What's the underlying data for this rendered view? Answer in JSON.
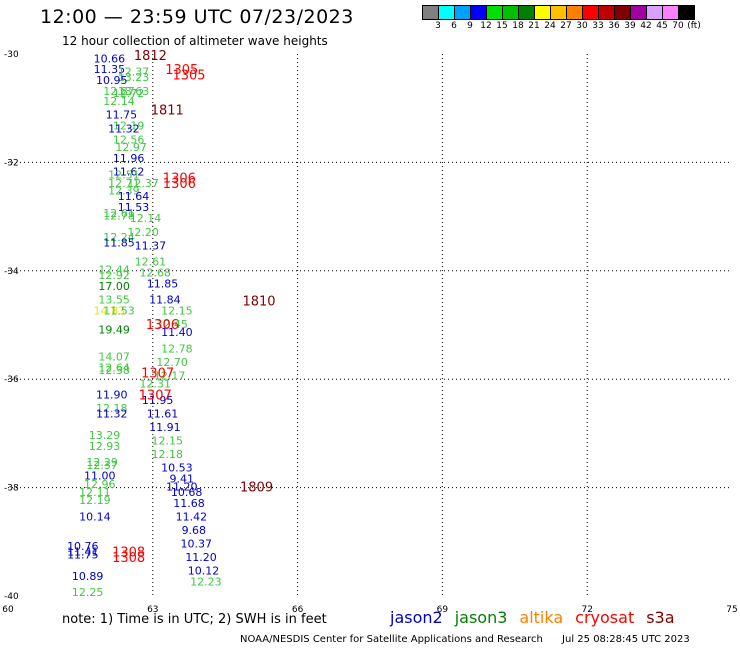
{
  "title": "12:00 — 23:59 UTC 07/23/2023",
  "subtitle": "12 hour collection of altimeter wave heights",
  "legend": {
    "colors": [
      "#808080",
      "#00ffff",
      "#00a0ff",
      "#0000ff",
      "#00e000",
      "#00c000",
      "#008000",
      "#ffff00",
      "#ffc000",
      "#ff8000",
      "#ff0000",
      "#c00000",
      "#800000",
      "#a000a0",
      "#d8a0ff",
      "#ff80ff",
      "#000000"
    ],
    "labels": [
      "3",
      "6",
      "9",
      "12",
      "15",
      "18",
      "21",
      "24",
      "27",
      "30",
      "33",
      "36",
      "39",
      "42",
      "45",
      "70",
      "(ft)"
    ]
  },
  "axes": {
    "lon_ticks": [
      "60",
      "63",
      "66",
      "69",
      "72",
      "75"
    ],
    "lat_ticks": [
      "-30",
      "-32",
      "-34",
      "-36",
      "-38",
      "-40"
    ]
  },
  "chart_data": {
    "type": "scatter",
    "xlabel": "",
    "ylabel": "",
    "xlim": [
      60,
      75
    ],
    "ylim": [
      -40,
      -30
    ],
    "grid": true,
    "colors": {
      "jason2": "#0000c8",
      "jason3": "#40c840",
      "jason3_dark": "#008000",
      "yellow": "#e8e800",
      "cryosat": "#ff0000",
      "s3a": "#800000"
    },
    "wave_heights": [
      {
        "lon": 62.1,
        "lat": -30.08,
        "value": "10.66",
        "color": "jason2"
      },
      {
        "lon": 62.1,
        "lat": -30.28,
        "value": "11.35",
        "color": "jason2"
      },
      {
        "lon": 62.6,
        "lat": -30.32,
        "value": "12.37",
        "color": "jason3"
      },
      {
        "lon": 62.6,
        "lat": -30.42,
        "value": "13.23",
        "color": "jason3"
      },
      {
        "lon": 62.15,
        "lat": -30.48,
        "value": "10.95",
        "color": "jason2"
      },
      {
        "lon": 62.3,
        "lat": -30.68,
        "value": "12.87",
        "color": "jason3"
      },
      {
        "lon": 62.6,
        "lat": -30.68,
        "value": "13.63",
        "color": "jason3"
      },
      {
        "lon": 62.5,
        "lat": -30.72,
        "value": "12.72",
        "color": "jason3"
      },
      {
        "lon": 62.3,
        "lat": -30.87,
        "value": "12.14",
        "color": "jason3"
      },
      {
        "lon": 62.35,
        "lat": -31.12,
        "value": "11.75",
        "color": "jason2"
      },
      {
        "lon": 62.5,
        "lat": -31.32,
        "value": "12.19",
        "color": "jason3"
      },
      {
        "lon": 62.4,
        "lat": -31.37,
        "value": "11.32",
        "color": "jason2"
      },
      {
        "lon": 62.5,
        "lat": -31.58,
        "value": "12.56",
        "color": "jason3"
      },
      {
        "lon": 62.55,
        "lat": -31.72,
        "value": "12.97",
        "color": "jason3"
      },
      {
        "lon": 62.5,
        "lat": -31.92,
        "value": "11.96",
        "color": "jason2"
      },
      {
        "lon": 62.5,
        "lat": -32.17,
        "value": "11.62",
        "color": "jason2"
      },
      {
        "lon": 62.4,
        "lat": -32.22,
        "value": "12.51",
        "color": "jason3"
      },
      {
        "lon": 62.4,
        "lat": -32.38,
        "value": "12.71",
        "color": "jason3"
      },
      {
        "lon": 62.8,
        "lat": -32.38,
        "value": "12.37",
        "color": "jason3"
      },
      {
        "lon": 62.4,
        "lat": -32.52,
        "value": "12.39",
        "color": "jason3"
      },
      {
        "lon": 62.6,
        "lat": -32.62,
        "value": "11.64",
        "color": "jason2"
      },
      {
        "lon": 62.6,
        "lat": -32.82,
        "value": "11.53",
        "color": "jason2"
      },
      {
        "lon": 62.3,
        "lat": -32.93,
        "value": "12.61",
        "color": "jason3"
      },
      {
        "lon": 62.3,
        "lat": -32.98,
        "value": "12.78",
        "color": "jason3"
      },
      {
        "lon": 62.85,
        "lat": -33.03,
        "value": "12.14",
        "color": "jason3"
      },
      {
        "lon": 62.8,
        "lat": -33.28,
        "value": "12.20",
        "color": "jason3"
      },
      {
        "lon": 62.3,
        "lat": -33.38,
        "value": "12.24",
        "color": "jason3"
      },
      {
        "lon": 62.3,
        "lat": -33.48,
        "value": "11.85",
        "color": "jason2"
      },
      {
        "lon": 62.95,
        "lat": -33.53,
        "value": "11.37",
        "color": "jason2"
      },
      {
        "lon": 62.95,
        "lat": -33.83,
        "value": "12.61",
        "color": "jason3"
      },
      {
        "lon": 62.2,
        "lat": -33.98,
        "value": "12.44",
        "color": "jason3"
      },
      {
        "lon": 62.2,
        "lat": -34.08,
        "value": "12.92",
        "color": "jason3"
      },
      {
        "lon": 63.05,
        "lat": -34.03,
        "value": "12.68",
        "color": "jason3"
      },
      {
        "lon": 62.2,
        "lat": -34.28,
        "value": "17.00",
        "color": "jason3_dark"
      },
      {
        "lon": 63.2,
        "lat": -34.23,
        "value": "11.85",
        "color": "jason2"
      },
      {
        "lon": 62.2,
        "lat": -34.53,
        "value": "13.55",
        "color": "jason3"
      },
      {
        "lon": 63.25,
        "lat": -34.53,
        "value": "11.84",
        "color": "jason2"
      },
      {
        "lon": 62.1,
        "lat": -34.73,
        "value": "14.83",
        "color": "yellow"
      },
      {
        "lon": 62.3,
        "lat": -34.73,
        "value": "11.53",
        "color": "jason3"
      },
      {
        "lon": 63.5,
        "lat": -34.73,
        "value": "12.15",
        "color": "jason3"
      },
      {
        "lon": 63.4,
        "lat": -34.98,
        "value": "12.45",
        "color": "jason3"
      },
      {
        "lon": 62.2,
        "lat": -35.08,
        "value": "19.49",
        "color": "jason3_dark"
      },
      {
        "lon": 63.5,
        "lat": -35.13,
        "value": "11.40",
        "color": "jason2"
      },
      {
        "lon": 63.5,
        "lat": -35.43,
        "value": "12.78",
        "color": "jason3"
      },
      {
        "lon": 62.2,
        "lat": -35.58,
        "value": "14.07",
        "color": "jason3"
      },
      {
        "lon": 63.4,
        "lat": -35.68,
        "value": "12.70",
        "color": "jason3"
      },
      {
        "lon": 62.2,
        "lat": -35.78,
        "value": "12.64",
        "color": "jason3"
      },
      {
        "lon": 62.2,
        "lat": -35.83,
        "value": "12.38",
        "color": "jason3"
      },
      {
        "lon": 63.35,
        "lat": -35.93,
        "value": "12.17",
        "color": "jason3"
      },
      {
        "lon": 63.05,
        "lat": -36.08,
        "value": "12.31",
        "color": "jason3"
      },
      {
        "lon": 62.15,
        "lat": -36.28,
        "value": "11.90",
        "color": "jason2"
      },
      {
        "lon": 63.1,
        "lat": -36.38,
        "value": "11.95",
        "color": "jason2"
      },
      {
        "lon": 62.15,
        "lat": -36.53,
        "value": "12.18",
        "color": "jason3"
      },
      {
        "lon": 62.15,
        "lat": -36.63,
        "value": "11.32",
        "color": "jason2"
      },
      {
        "lon": 63.2,
        "lat": -36.63,
        "value": "11.61",
        "color": "jason2"
      },
      {
        "lon": 63.25,
        "lat": -36.88,
        "value": "11.91",
        "color": "jason2"
      },
      {
        "lon": 62.0,
        "lat": -37.03,
        "value": "13.29",
        "color": "jason3"
      },
      {
        "lon": 63.3,
        "lat": -37.13,
        "value": "12.15",
        "color": "jason3"
      },
      {
        "lon": 62.0,
        "lat": -37.23,
        "value": "12.93",
        "color": "jason3"
      },
      {
        "lon": 63.3,
        "lat": -37.38,
        "value": "12.18",
        "color": "jason3"
      },
      {
        "lon": 61.95,
        "lat": -37.53,
        "value": "12.29",
        "color": "jason3"
      },
      {
        "lon": 61.95,
        "lat": -37.58,
        "value": "12.37",
        "color": "jason3"
      },
      {
        "lon": 63.5,
        "lat": -37.63,
        "value": "10.53",
        "color": "jason2"
      },
      {
        "lon": 61.9,
        "lat": -37.78,
        "value": "11.00",
        "color": "jason2"
      },
      {
        "lon": 63.6,
        "lat": -37.83,
        "value": "9.41",
        "color": "jason2"
      },
      {
        "lon": 61.9,
        "lat": -37.93,
        "value": "12.96",
        "color": "jason3"
      },
      {
        "lon": 63.6,
        "lat": -37.98,
        "value": "11.20",
        "color": "jason2"
      },
      {
        "lon": 63.7,
        "lat": -38.08,
        "value": "10.68",
        "color": "jason2"
      },
      {
        "lon": 61.8,
        "lat": -38.08,
        "value": "12.11",
        "color": "jason3"
      },
      {
        "lon": 61.8,
        "lat": -38.23,
        "value": "12.19",
        "color": "jason3"
      },
      {
        "lon": 63.75,
        "lat": -38.28,
        "value": "11.68",
        "color": "jason2"
      },
      {
        "lon": 63.8,
        "lat": -38.53,
        "value": "11.42",
        "color": "jason2"
      },
      {
        "lon": 61.8,
        "lat": -38.53,
        "value": "10.14",
        "color": "jason2"
      },
      {
        "lon": 63.85,
        "lat": -38.78,
        "value": "9.68",
        "color": "jason2"
      },
      {
        "lon": 63.9,
        "lat": -39.03,
        "value": "10.37",
        "color": "jason2"
      },
      {
        "lon": 61.55,
        "lat": -39.08,
        "value": "10.76",
        "color": "jason2"
      },
      {
        "lon": 61.55,
        "lat": -39.18,
        "value": "11.41",
        "color": "jason2"
      },
      {
        "lon": 61.55,
        "lat": -39.23,
        "value": "11.75",
        "color": "jason2"
      },
      {
        "lon": 64.0,
        "lat": -39.28,
        "value": "11.20",
        "color": "jason2"
      },
      {
        "lon": 64.05,
        "lat": -39.53,
        "value": "10.12",
        "color": "jason2"
      },
      {
        "lon": 61.65,
        "lat": -39.63,
        "value": "10.89",
        "color": "jason2"
      },
      {
        "lon": 64.1,
        "lat": -39.73,
        "value": "12.23",
        "color": "jason3"
      },
      {
        "lon": 61.65,
        "lat": -39.93,
        "value": "12.25",
        "color": "jason3"
      }
    ],
    "time_labels": [
      {
        "lon": 62.95,
        "lat": -30.02,
        "value": "1812",
        "color": "s3a"
      },
      {
        "lon": 63.6,
        "lat": -30.28,
        "value": "1305",
        "color": "cryosat"
      },
      {
        "lon": 63.75,
        "lat": -30.38,
        "value": "1305",
        "color": "cryosat"
      },
      {
        "lon": 63.3,
        "lat": -31.02,
        "value": "1811",
        "color": "s3a"
      },
      {
        "lon": 63.55,
        "lat": -32.28,
        "value": "1306",
        "color": "cryosat"
      },
      {
        "lon": 63.55,
        "lat": -32.38,
        "value": "1306",
        "color": "cryosat"
      },
      {
        "lon": 65.2,
        "lat": -34.55,
        "value": "1810",
        "color": "s3a"
      },
      {
        "lon": 63.2,
        "lat": -34.98,
        "value": "1306",
        "color": "cryosat"
      },
      {
        "lon": 63.1,
        "lat": -35.88,
        "value": "1307",
        "color": "cryosat"
      },
      {
        "lon": 63.05,
        "lat": -36.28,
        "value": "1307",
        "color": "cryosat"
      },
      {
        "lon": 65.15,
        "lat": -37.98,
        "value": "1809",
        "color": "s3a"
      },
      {
        "lon": 62.5,
        "lat": -39.18,
        "value": "1308",
        "color": "cryosat"
      },
      {
        "lon": 62.5,
        "lat": -39.28,
        "value": "1308",
        "color": "cryosat"
      }
    ]
  },
  "note": "note:  1) Time is in UTC;  2) SWH is in feet",
  "satellites": [
    {
      "name": "jason2",
      "color": "#0000c8"
    },
    {
      "name": "jason3",
      "color": "#008000"
    },
    {
      "name": "altika",
      "color": "#ff8000"
    },
    {
      "name": "cryosat",
      "color": "#ff0000"
    },
    {
      "name": "s3a",
      "color": "#800000"
    }
  ],
  "footer": {
    "credit": "NOAA/NESDIS Center for Satellite Applications and Research",
    "date": "Jul 25 08:28:45 UTC 2023"
  }
}
